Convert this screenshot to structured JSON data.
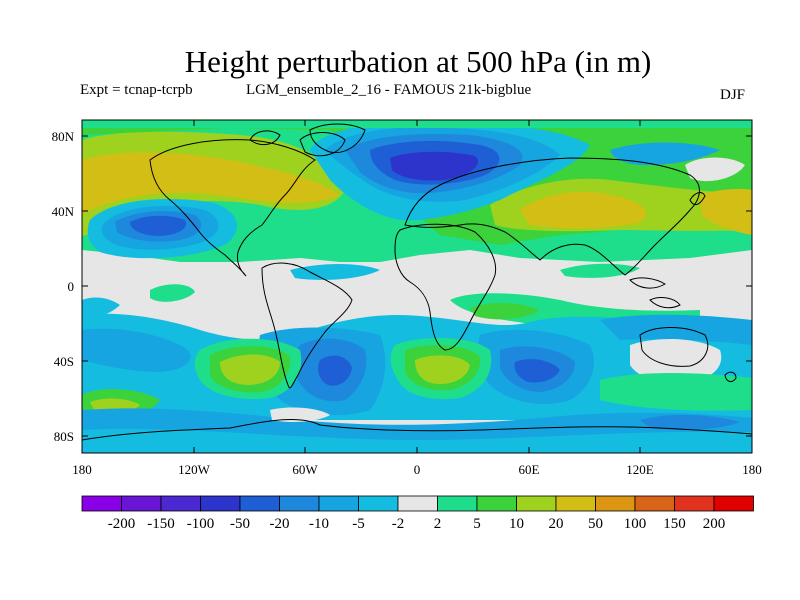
{
  "title": "Height perturbation at 500 hPa (in m)",
  "experiment": "Expt = tcnap-tcrpb",
  "run_name": "LGM_ensemble_2_16 - FAMOUS 21k-bigblue",
  "season": "DJF",
  "axes": {
    "lat_ticks": [
      "80N",
      "40N",
      "0",
      "40S",
      "80S"
    ],
    "lon_ticks": [
      "180",
      "120W",
      "60W",
      "0",
      "60E",
      "120E",
      "180"
    ]
  },
  "colorbar": {
    "labels": [
      "-200",
      "-150",
      "-100",
      "-50",
      "-20",
      "-10",
      "-5",
      "-2",
      "2",
      "5",
      "10",
      "20",
      "50",
      "100",
      "150",
      "200"
    ],
    "colors": [
      "#8a00e6",
      "#6a14d8",
      "#4b28d2",
      "#2d34cc",
      "#1f5fd6",
      "#1e88dc",
      "#16a5e0",
      "#14bde0",
      "#e6e6e6",
      "#1ede8c",
      "#3cd23c",
      "#9ed21e",
      "#d2be14",
      "#dc9614",
      "#d8641a",
      "#e0321e",
      "#e00000"
    ]
  }
}
